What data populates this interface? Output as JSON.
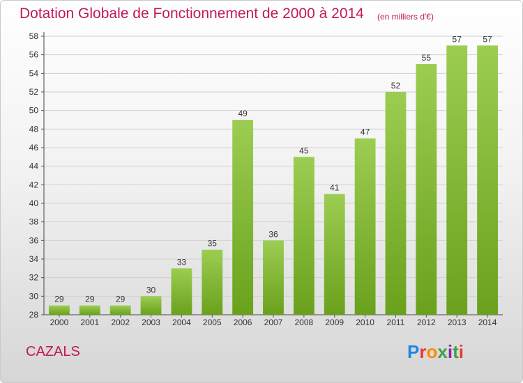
{
  "title": "Dotation Globale de Fonctionnement de 2000 à 2014",
  "subtitle": "(en milliers d'€)",
  "location": "CAZALS",
  "logo": {
    "text": "Proxiti"
  },
  "colors": {
    "title": "#c2185b",
    "bar_light": "#9ccd52",
    "bar_dark": "#6aa11c",
    "grid": "#d0d0d0"
  },
  "chart_data": {
    "type": "bar",
    "categories": [
      "2000",
      "2001",
      "2002",
      "2003",
      "2004",
      "2005",
      "2006",
      "2007",
      "2008",
      "2009",
      "2010",
      "2011",
      "2012",
      "2013",
      "2014"
    ],
    "values": [
      29,
      29,
      29,
      30,
      33,
      35,
      49,
      36,
      45,
      41,
      47,
      52,
      55,
      57,
      57
    ],
    "title": "Dotation Globale de Fonctionnement de 2000 à 2014",
    "subtitle": "(en milliers d'€)",
    "ylim": [
      28,
      58
    ],
    "yticks": [
      28,
      30,
      32,
      34,
      36,
      38,
      40,
      42,
      44,
      46,
      48,
      50,
      52,
      54,
      56,
      58
    ],
    "grid": true,
    "data_labels": true
  }
}
